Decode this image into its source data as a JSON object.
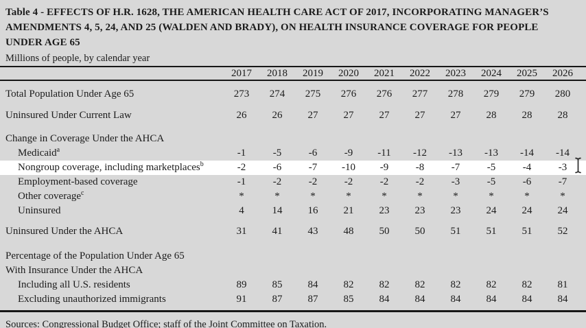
{
  "document": {
    "title_lines": [
      "Table 4 - EFFECTS OF H.R. 1628, THE AMERICAN HEALTH CARE ACT OF 2017, INCORPORATING MANAGER’S",
      "AMENDMENTS 4, 5, 24, AND 25 (WALDEN AND BRADY), ON HEALTH INSURANCE COVERAGE FOR PEOPLE",
      "UNDER AGE 65"
    ],
    "subtitle": "Millions of people, by calendar year",
    "source_line": "Sources: Congressional Budget Office; staff of the Joint Committee on Taxation."
  },
  "colors": {
    "page_background": "#d8d8d8",
    "highlight_row": "#ffffff",
    "text": "#1b1b1b",
    "rule": "#161616"
  },
  "cursor": {
    "type": "i-beam"
  },
  "chart_data": {
    "type": "table",
    "years": [
      "2017",
      "2018",
      "2019",
      "2020",
      "2021",
      "2022",
      "2023",
      "2024",
      "2025",
      "2026"
    ],
    "rows": [
      {
        "label": "Total Population Under Age 65",
        "sup": "",
        "values": [
          "273",
          "274",
          "275",
          "276",
          "276",
          "277",
          "278",
          "279",
          "279",
          "280"
        ]
      },
      {
        "label": "Uninsured Under Current Law",
        "sup": "",
        "values": [
          "26",
          "26",
          "27",
          "27",
          "27",
          "27",
          "27",
          "28",
          "28",
          "28"
        ]
      },
      {
        "label": "Change in Coverage Under the AHCA",
        "sup": "",
        "values": []
      },
      {
        "label": "Medicaid",
        "sup": "a",
        "values": [
          "-1",
          "-5",
          "-6",
          "-9",
          "-11",
          "-12",
          "-13",
          "-13",
          "-14",
          "-14"
        ]
      },
      {
        "label": "Nongroup coverage, including marketplaces",
        "sup": "b",
        "highlighted": true,
        "values": [
          "-2",
          "-6",
          "-7",
          "-10",
          "-9",
          "-8",
          "-7",
          "-5",
          "-4",
          "-3"
        ]
      },
      {
        "label": "Employment-based coverage",
        "sup": "",
        "values": [
          "-1",
          "-2",
          "-2",
          "-2",
          "-2",
          "-2",
          "-3",
          "-5",
          "-6",
          "-7"
        ]
      },
      {
        "label": "Other coverage",
        "sup": "c",
        "values": [
          "*",
          "*",
          "*",
          "*",
          "*",
          "*",
          "*",
          "*",
          "*",
          "*"
        ]
      },
      {
        "label": "Uninsured",
        "sup": "",
        "values": [
          "4",
          "14",
          "16",
          "21",
          "23",
          "23",
          "23",
          "24",
          "24",
          "24"
        ]
      },
      {
        "label": "Uninsured Under the AHCA",
        "sup": "",
        "values": [
          "31",
          "41",
          "43",
          "48",
          "50",
          "50",
          "51",
          "51",
          "51",
          "52"
        ]
      },
      {
        "label": "Percentage of the Population Under Age 65",
        "sup": "",
        "values": []
      },
      {
        "label": "With Insurance Under the AHCA",
        "sup": "",
        "values": []
      },
      {
        "label": "Including all U.S. residents",
        "sup": "",
        "values": [
          "89",
          "85",
          "84",
          "82",
          "82",
          "82",
          "82",
          "82",
          "82",
          "81"
        ]
      },
      {
        "label": "Excluding unauthorized immigrants",
        "sup": "",
        "values": [
          "91",
          "87",
          "87",
          "85",
          "84",
          "84",
          "84",
          "84",
          "84",
          "84"
        ]
      }
    ]
  }
}
